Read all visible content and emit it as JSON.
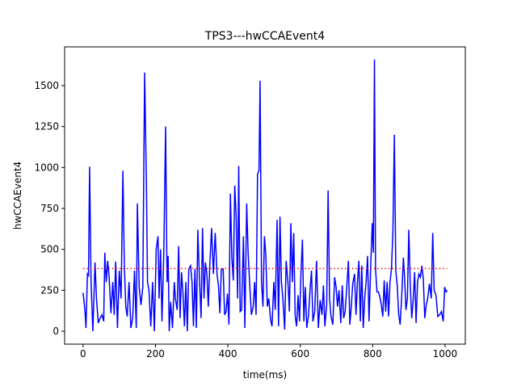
{
  "chart_data": {
    "type": "line",
    "title": "TPS3---hwCCAEvent4",
    "xlabel": "time(ms)",
    "ylabel": "hwCCAEvent4",
    "xlim": [
      -51,
      1056
    ],
    "ylim": [
      -79,
      1737
    ],
    "xticks": [
      0,
      200,
      400,
      600,
      800,
      1000
    ],
    "yticks": [
      0,
      250,
      500,
      750,
      1000,
      1250,
      1500
    ],
    "series": [
      {
        "color": "#0000ff",
        "style": "solid",
        "x": [
          0,
          5,
          8,
          12,
          15,
          18,
          22,
          27,
          33,
          37,
          42,
          47,
          52,
          57,
          60,
          64,
          68,
          72,
          77,
          82,
          86,
          90,
          95,
          100,
          105,
          110,
          114,
          118,
          122,
          127,
          132,
          137,
          142,
          147,
          150,
          155,
          160,
          165,
          170,
          175,
          178,
          182,
          187,
          192,
          197,
          202,
          207,
          210,
          214,
          218,
          223,
          228,
          232,
          235,
          238,
          242,
          247,
          252,
          255,
          260,
          264,
          268,
          272,
          276,
          280,
          284,
          288,
          292,
          297,
          301,
          305,
          309,
          313,
          317,
          321,
          326,
          330,
          334,
          338,
          342,
          346,
          350,
          355,
          360,
          365,
          370,
          374,
          378,
          382,
          387,
          391,
          395,
          399,
          403,
          407,
          411,
          415,
          419,
          423,
          427,
          430,
          434,
          438,
          443,
          447,
          452,
          456,
          460,
          465,
          470,
          474,
          478,
          482,
          486,
          489,
          493,
          497,
          501,
          505,
          509,
          513,
          518,
          522,
          527,
          531,
          536,
          540,
          544,
          548,
          552,
          557,
          561,
          566,
          570,
          574,
          578,
          582,
          586,
          590,
          594,
          598,
          602,
          606,
          610,
          614,
          618,
          623,
          627,
          631,
          635,
          640,
          645,
          650,
          655,
          660,
          664,
          668,
          673,
          677,
          681,
          685,
          690,
          695,
          699,
          703,
          707,
          712,
          716,
          720,
          724,
          728,
          733,
          737,
          741,
          745,
          750,
          754,
          758,
          762,
          766,
          770,
          774,
          778,
          782,
          786,
          790,
          795,
          799,
          802,
          805,
          808,
          812,
          816,
          820,
          824,
          828,
          832,
          836,
          840,
          844,
          848,
          852,
          856,
          860,
          864,
          868,
          872,
          876,
          880,
          885,
          888,
          892,
          896,
          900,
          904,
          908,
          912,
          916,
          920,
          924,
          928,
          932,
          936,
          940,
          944,
          948,
          952,
          957,
          962,
          966,
          970,
          975,
          980,
          985,
          990,
          995,
          999,
          1003,
          1006
        ],
        "values": [
          235,
          130,
          20,
          350,
          340,
          1005,
          300,
          0,
          420,
          200,
          50,
          80,
          100,
          60,
          480,
          300,
          430,
          330,
          110,
          300,
          100,
          425,
          20,
          370,
          200,
          980,
          400,
          150,
          90,
          300,
          20,
          80,
          370,
          20,
          780,
          270,
          160,
          270,
          1580,
          900,
          300,
          250,
          30,
          300,
          0,
          500,
          580,
          200,
          500,
          60,
          480,
          1250,
          300,
          460,
          0,
          180,
          20,
          300,
          200,
          130,
          520,
          80,
          360,
          230,
          30,
          300,
          0,
          380,
          400,
          300,
          30,
          380,
          20,
          620,
          350,
          80,
          630,
          200,
          420,
          350,
          150,
          400,
          630,
          350,
          600,
          350,
          280,
          110,
          380,
          380,
          100,
          120,
          230,
          40,
          840,
          450,
          310,
          890,
          700,
          200,
          1010,
          120,
          130,
          580,
          20,
          780,
          480,
          300,
          100,
          150,
          300,
          100,
          960,
          980,
          1530,
          300,
          150,
          580,
          460,
          150,
          200,
          70,
          30,
          300,
          130,
          680,
          30,
          700,
          300,
          200,
          10,
          430,
          300,
          120,
          660,
          300,
          600,
          90,
          30,
          220,
          60,
          360,
          560,
          60,
          270,
          20,
          100,
          250,
          370,
          60,
          120,
          430,
          20,
          190,
          100,
          280,
          30,
          160,
          860,
          200,
          90,
          40,
          330,
          270,
          150,
          250,
          50,
          280,
          80,
          120,
          250,
          430,
          40,
          150,
          290,
          350,
          100,
          300,
          430,
          60,
          400,
          20,
          200,
          300,
          460,
          60,
          420,
          660,
          480,
          1660,
          380,
          240,
          240,
          210,
          160,
          90,
          310,
          120,
          300,
          90,
          300,
          380,
          610,
          1200,
          370,
          280,
          100,
          40,
          200,
          450,
          340,
          130,
          200,
          620,
          280,
          80,
          190,
          360,
          50,
          300,
          350,
          330,
          400,
          320,
          80,
          160,
          200,
          290,
          200,
          600,
          250,
          220,
          90,
          100,
          120,
          60,
          270,
          240,
          250
        ]
      },
      {
        "color": "#ff0000",
        "style": "dotted",
        "x": [
          0,
          1006
        ],
        "values": [
          383,
          383
        ]
      }
    ]
  }
}
